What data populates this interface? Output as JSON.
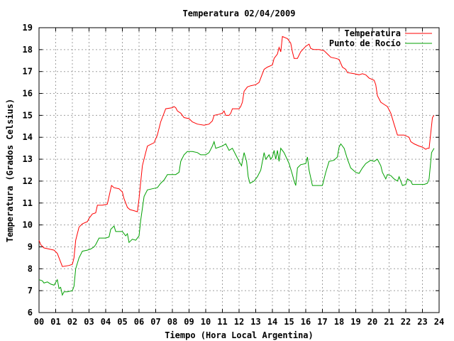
{
  "chart_data": {
    "type": "line",
    "title": "Temperatura 02/04/2009",
    "xlabel": "Tiempo (Hora Local Argentina)",
    "ylabel": "Temperatura (Grados Celsius)",
    "xlim": [
      0,
      24
    ],
    "ylim": [
      6,
      19
    ],
    "x_ticks": [
      "00",
      "01",
      "02",
      "03",
      "04",
      "05",
      "06",
      "07",
      "08",
      "09",
      "10",
      "11",
      "12",
      "13",
      "14",
      "15",
      "16",
      "17",
      "18",
      "19",
      "20",
      "21",
      "22",
      "23",
      "24"
    ],
    "y_ticks": [
      6,
      7,
      8,
      9,
      10,
      11,
      12,
      13,
      14,
      15,
      16,
      17,
      18,
      19
    ],
    "grid": true,
    "legend_position": "top-right",
    "series": [
      {
        "name": "Temperatura",
        "color": "#ff0000",
        "points": [
          [
            0.0,
            9.3
          ],
          [
            0.1,
            9.1
          ],
          [
            0.3,
            8.95
          ],
          [
            0.6,
            8.9
          ],
          [
            0.9,
            8.85
          ],
          [
            1.1,
            8.7
          ],
          [
            1.2,
            8.5
          ],
          [
            1.4,
            8.1
          ],
          [
            1.8,
            8.15
          ],
          [
            2.0,
            8.2
          ],
          [
            2.1,
            8.5
          ],
          [
            2.2,
            9.3
          ],
          [
            2.4,
            9.9
          ],
          [
            2.6,
            10.05
          ],
          [
            2.9,
            10.15
          ],
          [
            3.0,
            10.3
          ],
          [
            3.2,
            10.5
          ],
          [
            3.4,
            10.55
          ],
          [
            3.5,
            10.9
          ],
          [
            3.8,
            10.9
          ],
          [
            4.1,
            10.95
          ],
          [
            4.2,
            11.3
          ],
          [
            4.35,
            11.8
          ],
          [
            4.5,
            11.7
          ],
          [
            4.8,
            11.65
          ],
          [
            5.0,
            11.5
          ],
          [
            5.1,
            11.2
          ],
          [
            5.3,
            10.8
          ],
          [
            5.45,
            10.7
          ],
          [
            5.7,
            10.65
          ],
          [
            5.9,
            10.6
          ],
          [
            6.0,
            11.2
          ],
          [
            6.2,
            12.7
          ],
          [
            6.4,
            13.3
          ],
          [
            6.5,
            13.6
          ],
          [
            6.9,
            13.75
          ],
          [
            7.1,
            14.1
          ],
          [
            7.3,
            14.7
          ],
          [
            7.6,
            15.3
          ],
          [
            8.0,
            15.35
          ],
          [
            8.1,
            15.4
          ],
          [
            8.2,
            15.35
          ],
          [
            8.3,
            15.2
          ],
          [
            8.5,
            15.1
          ],
          [
            8.7,
            14.9
          ],
          [
            9.0,
            14.85
          ],
          [
            9.2,
            14.7
          ],
          [
            9.5,
            14.6
          ],
          [
            9.9,
            14.55
          ],
          [
            10.2,
            14.6
          ],
          [
            10.4,
            14.75
          ],
          [
            10.5,
            15.0
          ],
          [
            10.8,
            15.05
          ],
          [
            11.0,
            15.1
          ],
          [
            11.1,
            15.2
          ],
          [
            11.2,
            15.0
          ],
          [
            11.4,
            15.0
          ],
          [
            11.5,
            15.1
          ],
          [
            11.6,
            15.3
          ],
          [
            12.0,
            15.3
          ],
          [
            12.1,
            15.4
          ],
          [
            12.2,
            15.6
          ],
          [
            12.3,
            16.1
          ],
          [
            12.5,
            16.3
          ],
          [
            12.7,
            16.35
          ],
          [
            13.0,
            16.4
          ],
          [
            13.2,
            16.5
          ],
          [
            13.35,
            16.8
          ],
          [
            13.5,
            17.1
          ],
          [
            13.7,
            17.2
          ],
          [
            14.0,
            17.3
          ],
          [
            14.1,
            17.6
          ],
          [
            14.3,
            17.8
          ],
          [
            14.4,
            18.1
          ],
          [
            14.5,
            17.9
          ],
          [
            14.6,
            18.6
          ],
          [
            14.9,
            18.5
          ],
          [
            15.1,
            18.3
          ],
          [
            15.2,
            17.9
          ],
          [
            15.3,
            17.6
          ],
          [
            15.5,
            17.6
          ],
          [
            15.7,
            17.9
          ],
          [
            16.0,
            18.15
          ],
          [
            16.2,
            18.25
          ],
          [
            16.3,
            18.05
          ],
          [
            16.5,
            18.0
          ],
          [
            16.8,
            18.0
          ],
          [
            17.1,
            17.95
          ],
          [
            17.3,
            17.8
          ],
          [
            17.5,
            17.65
          ],
          [
            17.8,
            17.6
          ],
          [
            18.0,
            17.55
          ],
          [
            18.2,
            17.2
          ],
          [
            18.4,
            17.1
          ],
          [
            18.5,
            16.95
          ],
          [
            18.9,
            16.9
          ],
          [
            19.2,
            16.85
          ],
          [
            19.4,
            16.9
          ],
          [
            19.6,
            16.85
          ],
          [
            19.8,
            16.7
          ],
          [
            20.1,
            16.6
          ],
          [
            20.2,
            16.4
          ],
          [
            20.3,
            15.9
          ],
          [
            20.5,
            15.6
          ],
          [
            20.7,
            15.5
          ],
          [
            20.9,
            15.4
          ],
          [
            21.1,
            15.1
          ],
          [
            21.3,
            14.6
          ],
          [
            21.5,
            14.1
          ],
          [
            21.9,
            14.1
          ],
          [
            22.2,
            14.0
          ],
          [
            22.3,
            13.8
          ],
          [
            22.5,
            13.7
          ],
          [
            22.8,
            13.6
          ],
          [
            23.0,
            13.55
          ],
          [
            23.2,
            13.45
          ],
          [
            23.3,
            13.5
          ],
          [
            23.4,
            13.5
          ],
          [
            23.6,
            14.9
          ],
          [
            23.7,
            15.0
          ]
        ]
      },
      {
        "name": "Punto de Rocío",
        "color": "#00a000",
        "points": [
          [
            0.0,
            7.5
          ],
          [
            0.2,
            7.45
          ],
          [
            0.3,
            7.35
          ],
          [
            0.5,
            7.4
          ],
          [
            0.7,
            7.3
          ],
          [
            0.9,
            7.25
          ],
          [
            1.1,
            7.5
          ],
          [
            1.2,
            7.1
          ],
          [
            1.3,
            7.15
          ],
          [
            1.4,
            6.8
          ],
          [
            1.5,
            6.95
          ],
          [
            1.7,
            6.95
          ],
          [
            2.0,
            7.0
          ],
          [
            2.1,
            7.2
          ],
          [
            2.2,
            8.0
          ],
          [
            2.4,
            8.5
          ],
          [
            2.6,
            8.8
          ],
          [
            2.9,
            8.85
          ],
          [
            3.1,
            8.9
          ],
          [
            3.3,
            9.0
          ],
          [
            3.4,
            9.1
          ],
          [
            3.6,
            9.4
          ],
          [
            4.0,
            9.4
          ],
          [
            4.2,
            9.45
          ],
          [
            4.3,
            9.8
          ],
          [
            4.5,
            9.95
          ],
          [
            4.6,
            9.7
          ],
          [
            5.0,
            9.7
          ],
          [
            5.2,
            9.5
          ],
          [
            5.3,
            9.6
          ],
          [
            5.4,
            9.2
          ],
          [
            5.6,
            9.35
          ],
          [
            5.8,
            9.3
          ],
          [
            6.0,
            9.5
          ],
          [
            6.1,
            10.2
          ],
          [
            6.3,
            11.3
          ],
          [
            6.5,
            11.6
          ],
          [
            6.8,
            11.65
          ],
          [
            7.1,
            11.7
          ],
          [
            7.3,
            11.9
          ],
          [
            7.5,
            12.05
          ],
          [
            7.7,
            12.3
          ],
          [
            8.2,
            12.3
          ],
          [
            8.4,
            12.4
          ],
          [
            8.5,
            12.9
          ],
          [
            8.7,
            13.2
          ],
          [
            8.9,
            13.35
          ],
          [
            9.2,
            13.35
          ],
          [
            9.5,
            13.3
          ],
          [
            9.7,
            13.2
          ],
          [
            10.0,
            13.2
          ],
          [
            10.2,
            13.3
          ],
          [
            10.4,
            13.6
          ],
          [
            10.5,
            13.8
          ],
          [
            10.6,
            13.5
          ],
          [
            11.0,
            13.6
          ],
          [
            11.2,
            13.7
          ],
          [
            11.4,
            13.4
          ],
          [
            11.6,
            13.5
          ],
          [
            11.8,
            13.2
          ],
          [
            12.0,
            12.9
          ],
          [
            12.15,
            12.7
          ],
          [
            12.3,
            13.3
          ],
          [
            12.45,
            12.9
          ],
          [
            12.55,
            12.2
          ],
          [
            12.65,
            11.9
          ],
          [
            12.9,
            12.0
          ],
          [
            13.1,
            12.2
          ],
          [
            13.3,
            12.5
          ],
          [
            13.5,
            13.3
          ],
          [
            13.6,
            13.0
          ],
          [
            13.8,
            13.2
          ],
          [
            13.9,
            13.0
          ],
          [
            14.0,
            13.1
          ],
          [
            14.1,
            13.4
          ],
          [
            14.2,
            13.0
          ],
          [
            14.3,
            13.4
          ],
          [
            14.4,
            12.9
          ],
          [
            14.5,
            13.5
          ],
          [
            14.7,
            13.3
          ],
          [
            15.0,
            12.8
          ],
          [
            15.2,
            12.3
          ],
          [
            15.3,
            12.0
          ],
          [
            15.4,
            11.8
          ],
          [
            15.5,
            12.6
          ],
          [
            15.7,
            12.75
          ],
          [
            16.0,
            12.8
          ],
          [
            16.1,
            13.1
          ],
          [
            16.2,
            12.5
          ],
          [
            16.4,
            11.8
          ],
          [
            17.0,
            11.8
          ],
          [
            17.2,
            12.4
          ],
          [
            17.4,
            12.9
          ],
          [
            17.7,
            12.95
          ],
          [
            17.9,
            13.1
          ],
          [
            18.0,
            13.55
          ],
          [
            18.1,
            13.7
          ],
          [
            18.3,
            13.5
          ],
          [
            18.5,
            13.0
          ],
          [
            18.7,
            12.6
          ],
          [
            19.0,
            12.4
          ],
          [
            19.2,
            12.35
          ],
          [
            19.4,
            12.6
          ],
          [
            19.6,
            12.8
          ],
          [
            19.9,
            12.95
          ],
          [
            20.1,
            12.9
          ],
          [
            20.3,
            13.0
          ],
          [
            20.5,
            12.7
          ],
          [
            20.6,
            12.4
          ],
          [
            20.8,
            12.1
          ],
          [
            20.9,
            12.3
          ],
          [
            21.1,
            12.25
          ],
          [
            21.3,
            12.1
          ],
          [
            21.5,
            12.0
          ],
          [
            21.6,
            12.2
          ],
          [
            21.8,
            11.8
          ],
          [
            22.0,
            11.85
          ],
          [
            22.1,
            12.1
          ],
          [
            22.3,
            12.0
          ],
          [
            22.4,
            11.85
          ],
          [
            22.6,
            11.85
          ],
          [
            23.0,
            11.85
          ],
          [
            23.1,
            11.85
          ],
          [
            23.3,
            11.9
          ],
          [
            23.4,
            12.1
          ],
          [
            23.55,
            13.3
          ],
          [
            23.7,
            13.5
          ]
        ]
      }
    ]
  }
}
